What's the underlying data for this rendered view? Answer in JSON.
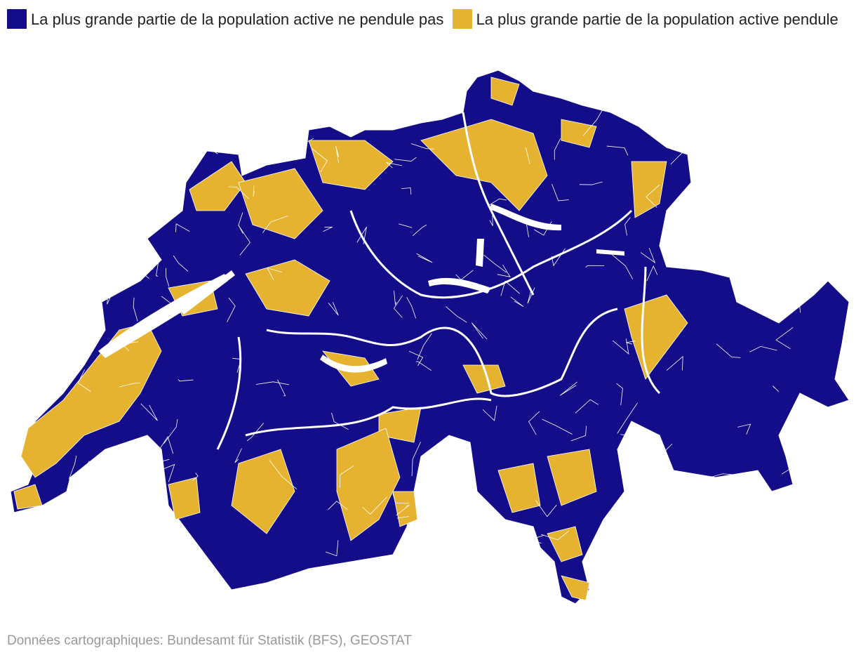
{
  "legend": {
    "items": [
      {
        "label": "La plus grande partie de la population active ne pendule pas",
        "color": "#130d8a"
      },
      {
        "label": "La plus grande partie de la population active pendule",
        "color": "#e5b32f"
      }
    ]
  },
  "source": "Données cartographiques: Bundesamt für Statistik (BFS), GEOSTAT"
}
